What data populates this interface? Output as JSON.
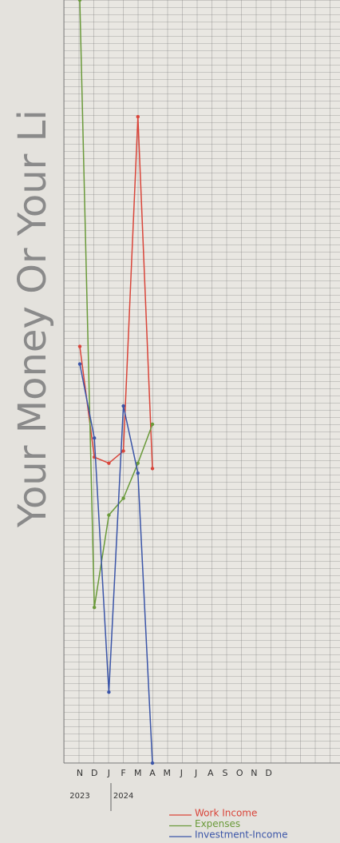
{
  "chart_data": {
    "type": "line",
    "title": "Your Money Or Your Li",
    "categories": [
      "N",
      "D",
      "J",
      "F",
      "M",
      "A",
      "M",
      "J",
      "J",
      "A",
      "S",
      "O",
      "N",
      "D"
    ],
    "x_group_labels": [
      "2023",
      "2024"
    ],
    "ylim": [
      0,
      100
    ],
    "log_scale": true,
    "series": [
      {
        "name": "Work Income",
        "color": "#d9453a",
        "values": [
          54.6,
          40.1,
          39.3,
          40.9,
          84.7,
          38.6,
          null,
          null,
          null,
          null,
          null,
          null,
          null,
          null
        ]
      },
      {
        "name": "Expenses",
        "color": "#6a9a3a",
        "values": [
          100,
          20.4,
          32.5,
          34.7,
          39.3,
          44.4,
          null,
          null,
          null,
          null,
          null,
          null,
          null,
          null
        ]
      },
      {
        "name": "Investment-Income",
        "color": "#3b55a8",
        "values": [
          52.3,
          42.6,
          9.3,
          46.8,
          38.0,
          0,
          null,
          null,
          null,
          null,
          null,
          null,
          null,
          null
        ]
      }
    ]
  }
}
